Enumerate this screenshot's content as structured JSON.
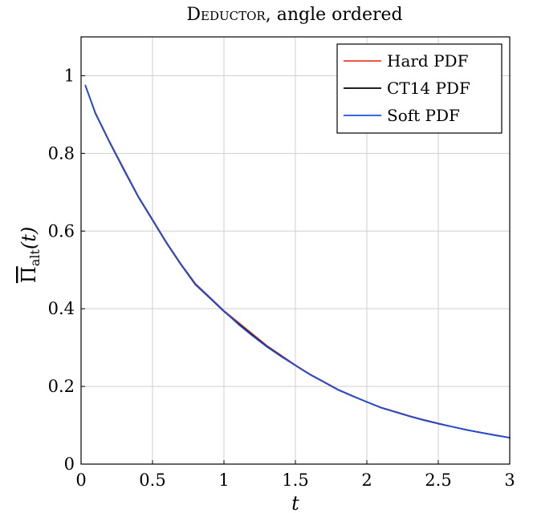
{
  "chart_data": {
    "type": "line",
    "title_sc": "Deductor",
    "title_rest": ", angle ordered",
    "xlabel": "t",
    "ylabel": {
      "base": "Π",
      "subscript": "alt",
      "arg": "(t)"
    },
    "xlim": [
      0,
      3
    ],
    "ylim": [
      0,
      1.1
    ],
    "xticks": [
      0,
      0.5,
      1,
      1.5,
      2,
      2.5,
      3
    ],
    "xtick_labels": [
      "0",
      "0.5",
      "1",
      "1.5",
      "2",
      "2.5",
      "3"
    ],
    "yticks": [
      0,
      0.2,
      0.4,
      0.6,
      0.8,
      1
    ],
    "ytick_labels": [
      "0",
      "0.2",
      "0.4",
      "0.6",
      "0.8",
      "1"
    ],
    "grid": true,
    "legend_position": "top-right",
    "x": [
      0.03,
      0.1,
      0.2,
      0.3,
      0.4,
      0.5,
      0.6,
      0.7,
      0.8,
      0.9,
      1.0,
      1.1,
      1.2,
      1.3,
      1.4,
      1.5,
      1.6,
      1.7,
      1.8,
      1.9,
      2.0,
      2.1,
      2.2,
      2.3,
      2.4,
      2.5,
      2.6,
      2.7,
      2.8,
      2.9,
      3.0
    ],
    "series": [
      {
        "name": "Hard PDF",
        "color": "#e8402a",
        "values": [
          0.975,
          0.905,
          0.83,
          0.76,
          0.69,
          0.63,
          0.57,
          0.515,
          0.465,
          0.43,
          0.395,
          0.365,
          0.335,
          0.305,
          0.28,
          0.255,
          0.232,
          0.212,
          0.192,
          0.176,
          0.16,
          0.146,
          0.135,
          0.124,
          0.114,
          0.105,
          0.096,
          0.088,
          0.081,
          0.075,
          0.068
        ]
      },
      {
        "name": "CT14 PDF",
        "color": "#000000",
        "values": [
          0.975,
          0.903,
          0.828,
          0.757,
          0.688,
          0.628,
          0.568,
          0.513,
          0.462,
          0.428,
          0.393,
          0.362,
          0.332,
          0.303,
          0.278,
          0.254,
          0.231,
          0.211,
          0.191,
          0.175,
          0.16,
          0.145,
          0.134,
          0.123,
          0.113,
          0.104,
          0.096,
          0.088,
          0.081,
          0.074,
          0.068
        ]
      },
      {
        "name": "Soft PDF",
        "color": "#1f4fe0",
        "values": [
          0.975,
          0.904,
          0.828,
          0.758,
          0.689,
          0.629,
          0.569,
          0.514,
          0.463,
          0.429,
          0.394,
          0.36,
          0.33,
          0.302,
          0.277,
          0.254,
          0.231,
          0.211,
          0.191,
          0.175,
          0.16,
          0.145,
          0.134,
          0.123,
          0.113,
          0.104,
          0.096,
          0.088,
          0.081,
          0.074,
          0.068
        ]
      }
    ]
  }
}
